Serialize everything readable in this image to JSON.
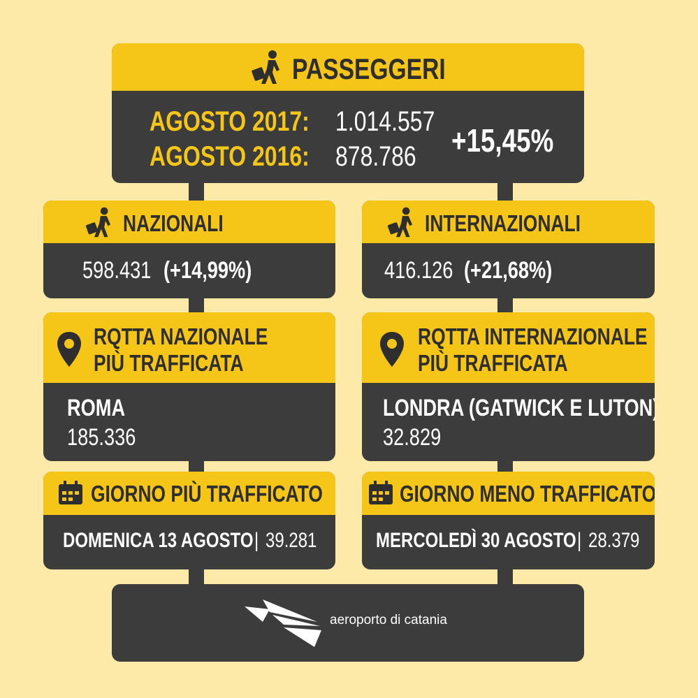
{
  "header": {
    "title": "PASSEGGERI",
    "rows": [
      {
        "label": "AGOSTO 2017:",
        "value": "1.014.557"
      },
      {
        "label": "AGOSTO 2016:",
        "value": "878.786"
      }
    ],
    "change": "+15,45%"
  },
  "nazionali": {
    "title": "NAZIONALI",
    "value": "598.431",
    "change": "(+14,99%)"
  },
  "internazionali": {
    "title": "INTERNAZIONALI",
    "value": "416.126",
    "change": "(+21,68%)"
  },
  "rotta_nazionale": {
    "title": [
      "RQTTA NAZIONALE",
      "PIÙ TRAFFICATA"
    ],
    "city": "ROMA",
    "value": "185.336"
  },
  "rotta_internazionale": {
    "title": [
      "RQTTA INTERNAZIONALE",
      "PIÙ TRAFFICATA"
    ],
    "city": "LONDRA (GATWICK E LUTON)",
    "value": "32.829"
  },
  "giorno_piu": {
    "title": "GIORNO PIÙ TRAFFICATO",
    "day": "DOMENICA 13 AGOSTO",
    "value": "39.281"
  },
  "giorno_meno": {
    "title": "GIORNO MENO TRAFFICATO",
    "day": "MERCOLEDÌ 30 AGOSTO",
    "value": "28.379"
  },
  "separator": "|",
  "footer": {
    "brand": "aeroporto di catania"
  }
}
